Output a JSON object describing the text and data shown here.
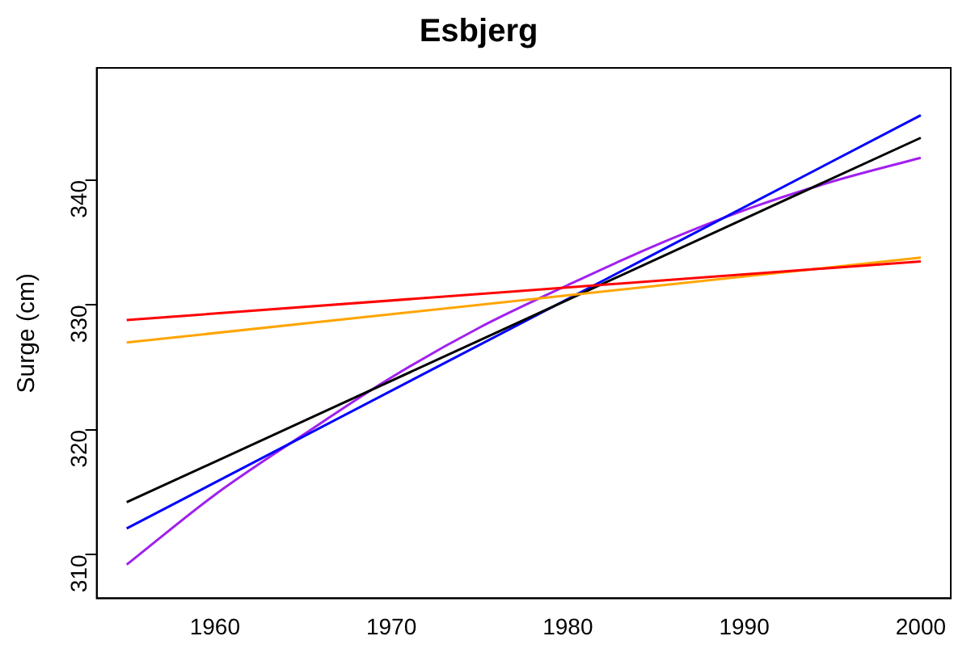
{
  "chart_data": {
    "type": "line",
    "title": "Esbjerg",
    "ylabel": "Surge (cm)",
    "xlim": [
      1953.3,
      2001.7
    ],
    "xticks": [
      1960,
      1970,
      1980,
      1990,
      2000
    ],
    "ylim": [
      306.5,
      349
    ],
    "yticks": [
      310,
      320,
      330,
      340
    ],
    "grid": false,
    "legend": false,
    "marker": "none",
    "line_style": "solid",
    "series": [
      {
        "color": "#ff0000",
        "x": [
          1955,
          2000
        ],
        "values": [
          328.8,
          333.5
        ]
      },
      {
        "color": "#ffa500",
        "x": [
          1955,
          2000
        ],
        "values": [
          327.0,
          333.8
        ]
      },
      {
        "color": "#000000",
        "x": [
          1955,
          2000
        ],
        "values": [
          314.2,
          343.4
        ]
      },
      {
        "color": "#0000ff",
        "x": [
          1955,
          2000
        ],
        "values": [
          312.1,
          345.2
        ]
      },
      {
        "color": "#a020f0",
        "x": [
          1955,
          1960,
          1965,
          1970,
          1975,
          1980,
          1985,
          1990,
          1995,
          2000
        ],
        "values": [
          309.2,
          314.8,
          319.6,
          324.2,
          328.2,
          331.6,
          334.8,
          337.6,
          339.9,
          341.8
        ]
      }
    ]
  }
}
